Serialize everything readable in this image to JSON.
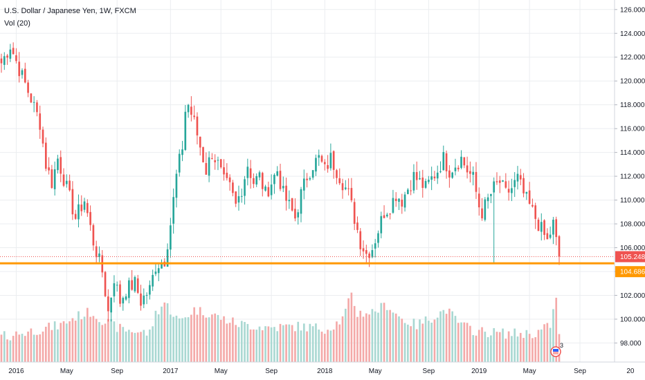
{
  "colors": {
    "up": "#26a69a",
    "down": "#ef5350",
    "vol_up": "#a9d8d2",
    "vol_down": "#f4a9a8",
    "grid": "#ebedf0",
    "support_line": "#ff9800",
    "last_price_bg": "#ef5350",
    "support_bg": "#ff9800",
    "axis_text": "#131722"
  },
  "header": {
    "symbol_line": "U.S. Dollar / Japanese Yen, 1W, FXCM",
    "volume_label": "Vol (20)"
  },
  "chart_data": {
    "type": "candlestick",
    "title": "U.S. Dollar / Japanese Yen, 1W, FXCM",
    "ylim": [
      96.4,
      126.8
    ],
    "yticks": [
      "126.000",
      "124.000",
      "122.000",
      "120.000",
      "118.000",
      "116.000",
      "114.000",
      "112.000",
      "110.000",
      "108.000",
      "106.000",
      "104.000",
      "102.000",
      "100.000",
      "98.000"
    ],
    "xticks": [
      "2016",
      "May",
      "Sep",
      "2017",
      "May",
      "Sep",
      "2018",
      "May",
      "Sep",
      "2019",
      "May",
      "Sep",
      "20"
    ],
    "last_price": "105.248",
    "support_level": "104.686",
    "support_value": 104.686,
    "last_value": 105.248,
    "grid": true,
    "indicators": [
      "Vol (20)"
    ],
    "price_path": [
      [
        0,
        121.5
      ],
      [
        3,
        123.0
      ],
      [
        6,
        121.0
      ],
      [
        10,
        118.5
      ],
      [
        13,
        116.5
      ],
      [
        15,
        113.0
      ],
      [
        17,
        111.5
      ],
      [
        19,
        113.5
      ],
      [
        22,
        111.0
      ],
      [
        25,
        108.5
      ],
      [
        28,
        110.0
      ],
      [
        31,
        106.5
      ],
      [
        34,
        104.0
      ],
      [
        36,
        100.6
      ],
      [
        38,
        103.5
      ],
      [
        40,
        101.5
      ],
      [
        42,
        102.5
      ],
      [
        45,
        103.0
      ],
      [
        47,
        101.5
      ],
      [
        50,
        102.5
      ],
      [
        52,
        104.5
      ],
      [
        55,
        105.0
      ],
      [
        57,
        108.0
      ],
      [
        59,
        112.0
      ],
      [
        61,
        114.5
      ],
      [
        62,
        117.5
      ],
      [
        63,
        118.0
      ],
      [
        65,
        116.5
      ],
      [
        67,
        114.5
      ],
      [
        69,
        112.5
      ],
      [
        71,
        114.0
      ],
      [
        73,
        113.0
      ],
      [
        75,
        111.5
      ],
      [
        77,
        111.0
      ],
      [
        79,
        109.5
      ],
      [
        81,
        111.0
      ],
      [
        83,
        113.0
      ],
      [
        85,
        111.5
      ],
      [
        87,
        112.0
      ],
      [
        89,
        110.5
      ],
      [
        91,
        111.5
      ],
      [
        93,
        112.5
      ],
      [
        95,
        110.5
      ],
      [
        97,
        109.5
      ],
      [
        99,
        108.5
      ],
      [
        101,
        110.5
      ],
      [
        103,
        112.0
      ],
      [
        105,
        113.0
      ],
      [
        107,
        113.5
      ],
      [
        109,
        112.5
      ],
      [
        111,
        113.5
      ],
      [
        113,
        112.5
      ],
      [
        115,
        111.5
      ],
      [
        117,
        110.5
      ],
      [
        119,
        108.5
      ],
      [
        121,
        106.5
      ],
      [
        123,
        105.5
      ],
      [
        125,
        106.0
      ],
      [
        127,
        107.5
      ],
      [
        129,
        109.0
      ],
      [
        131,
        109.5
      ],
      [
        133,
        110.5
      ],
      [
        135,
        110.0
      ],
      [
        137,
        111.0
      ],
      [
        139,
        112.0
      ],
      [
        141,
        111.5
      ],
      [
        143,
        111.0
      ],
      [
        145,
        111.8
      ],
      [
        147,
        112.5
      ],
      [
        149,
        113.5
      ],
      [
        151,
        112.5
      ],
      [
        153,
        113.0
      ],
      [
        155,
        113.5
      ],
      [
        157,
        112.5
      ],
      [
        159,
        111.8
      ],
      [
        161,
        109.5
      ],
      [
        162,
        109.0
      ],
      [
        164,
        110.0
      ],
      [
        166,
        111.0
      ],
      [
        168,
        111.5
      ],
      [
        170,
        110.5
      ],
      [
        172,
        111.0
      ],
      [
        174,
        111.8
      ],
      [
        176,
        110.5
      ],
      [
        178,
        109.5
      ],
      [
        180,
        108.5
      ],
      [
        182,
        107.5
      ],
      [
        184,
        106.5
      ],
      [
        186,
        108.0
      ],
      [
        187,
        106.5
      ],
      [
        188,
        105.2
      ]
    ],
    "volume_path": [
      [
        0,
        98.5
      ],
      [
        10,
        99.0
      ],
      [
        20,
        99.5
      ],
      [
        25,
        100.2
      ],
      [
        30,
        100.6
      ],
      [
        35,
        99.8
      ],
      [
        40,
        99.2
      ],
      [
        45,
        99.0
      ],
      [
        50,
        98.8
      ],
      [
        52,
        100.5
      ],
      [
        55,
        101.4
      ],
      [
        60,
        99.8
      ],
      [
        65,
        100.8
      ],
      [
        70,
        100.5
      ],
      [
        75,
        100.0
      ],
      [
        80,
        99.6
      ],
      [
        90,
        99.3
      ],
      [
        100,
        99.4
      ],
      [
        110,
        99.2
      ],
      [
        115,
        100.0
      ],
      [
        118,
        102.0
      ],
      [
        120,
        100.5
      ],
      [
        125,
        100.6
      ],
      [
        130,
        101.2
      ],
      [
        135,
        100.0
      ],
      [
        140,
        99.5
      ],
      [
        150,
        100.8
      ],
      [
        155,
        99.5
      ],
      [
        160,
        99.0
      ],
      [
        170,
        98.8
      ],
      [
        180,
        98.8
      ],
      [
        185,
        99.5
      ],
      [
        187,
        101.8
      ],
      [
        188,
        98.5
      ]
    ],
    "badge_count": "3"
  }
}
